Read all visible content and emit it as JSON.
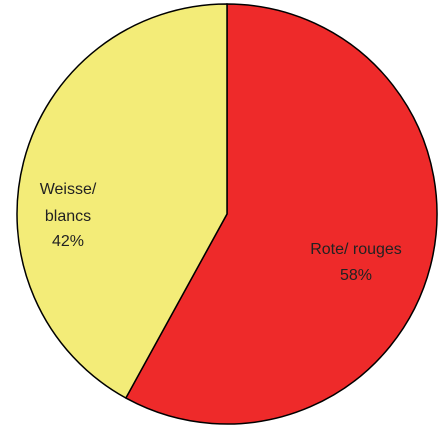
{
  "chart_data": {
    "type": "pie",
    "categories": [
      "Rote/ rouges",
      "Weisse/\nblancs"
    ],
    "values": [
      58,
      42
    ],
    "value_labels": [
      "58%",
      "42%"
    ],
    "colors": [
      "#ee2a2a",
      "#f3ec78"
    ]
  }
}
